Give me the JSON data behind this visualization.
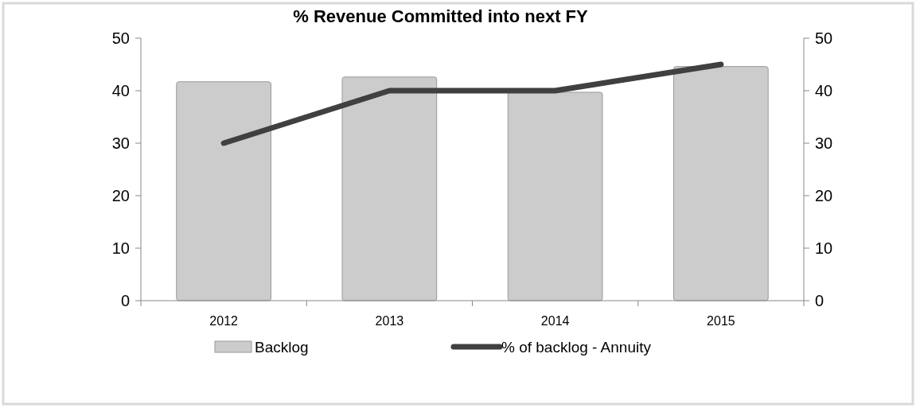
{
  "chart_data": {
    "type": "bar",
    "title": "% Revenue Committed into next FY",
    "categories": [
      "2012",
      "2013",
      "2014",
      "2015"
    ],
    "series": [
      {
        "name": "Backlog",
        "color": "#cccccc",
        "values": [
          41.7,
          42.6,
          39.7,
          44.6
        ]
      },
      {
        "name": "% of backlog - Annuity",
        "type": "line",
        "color": "#404040",
        "values": [
          30,
          40,
          40,
          45
        ]
      }
    ],
    "ylim": [
      0,
      50
    ],
    "yticks": [
      0,
      10,
      20,
      30,
      40,
      50
    ],
    "y2lim": [
      0,
      50
    ],
    "y2ticks": [
      0,
      10,
      20,
      30,
      40,
      50
    ],
    "legend": "bottom",
    "grid": false,
    "marker": "none"
  }
}
